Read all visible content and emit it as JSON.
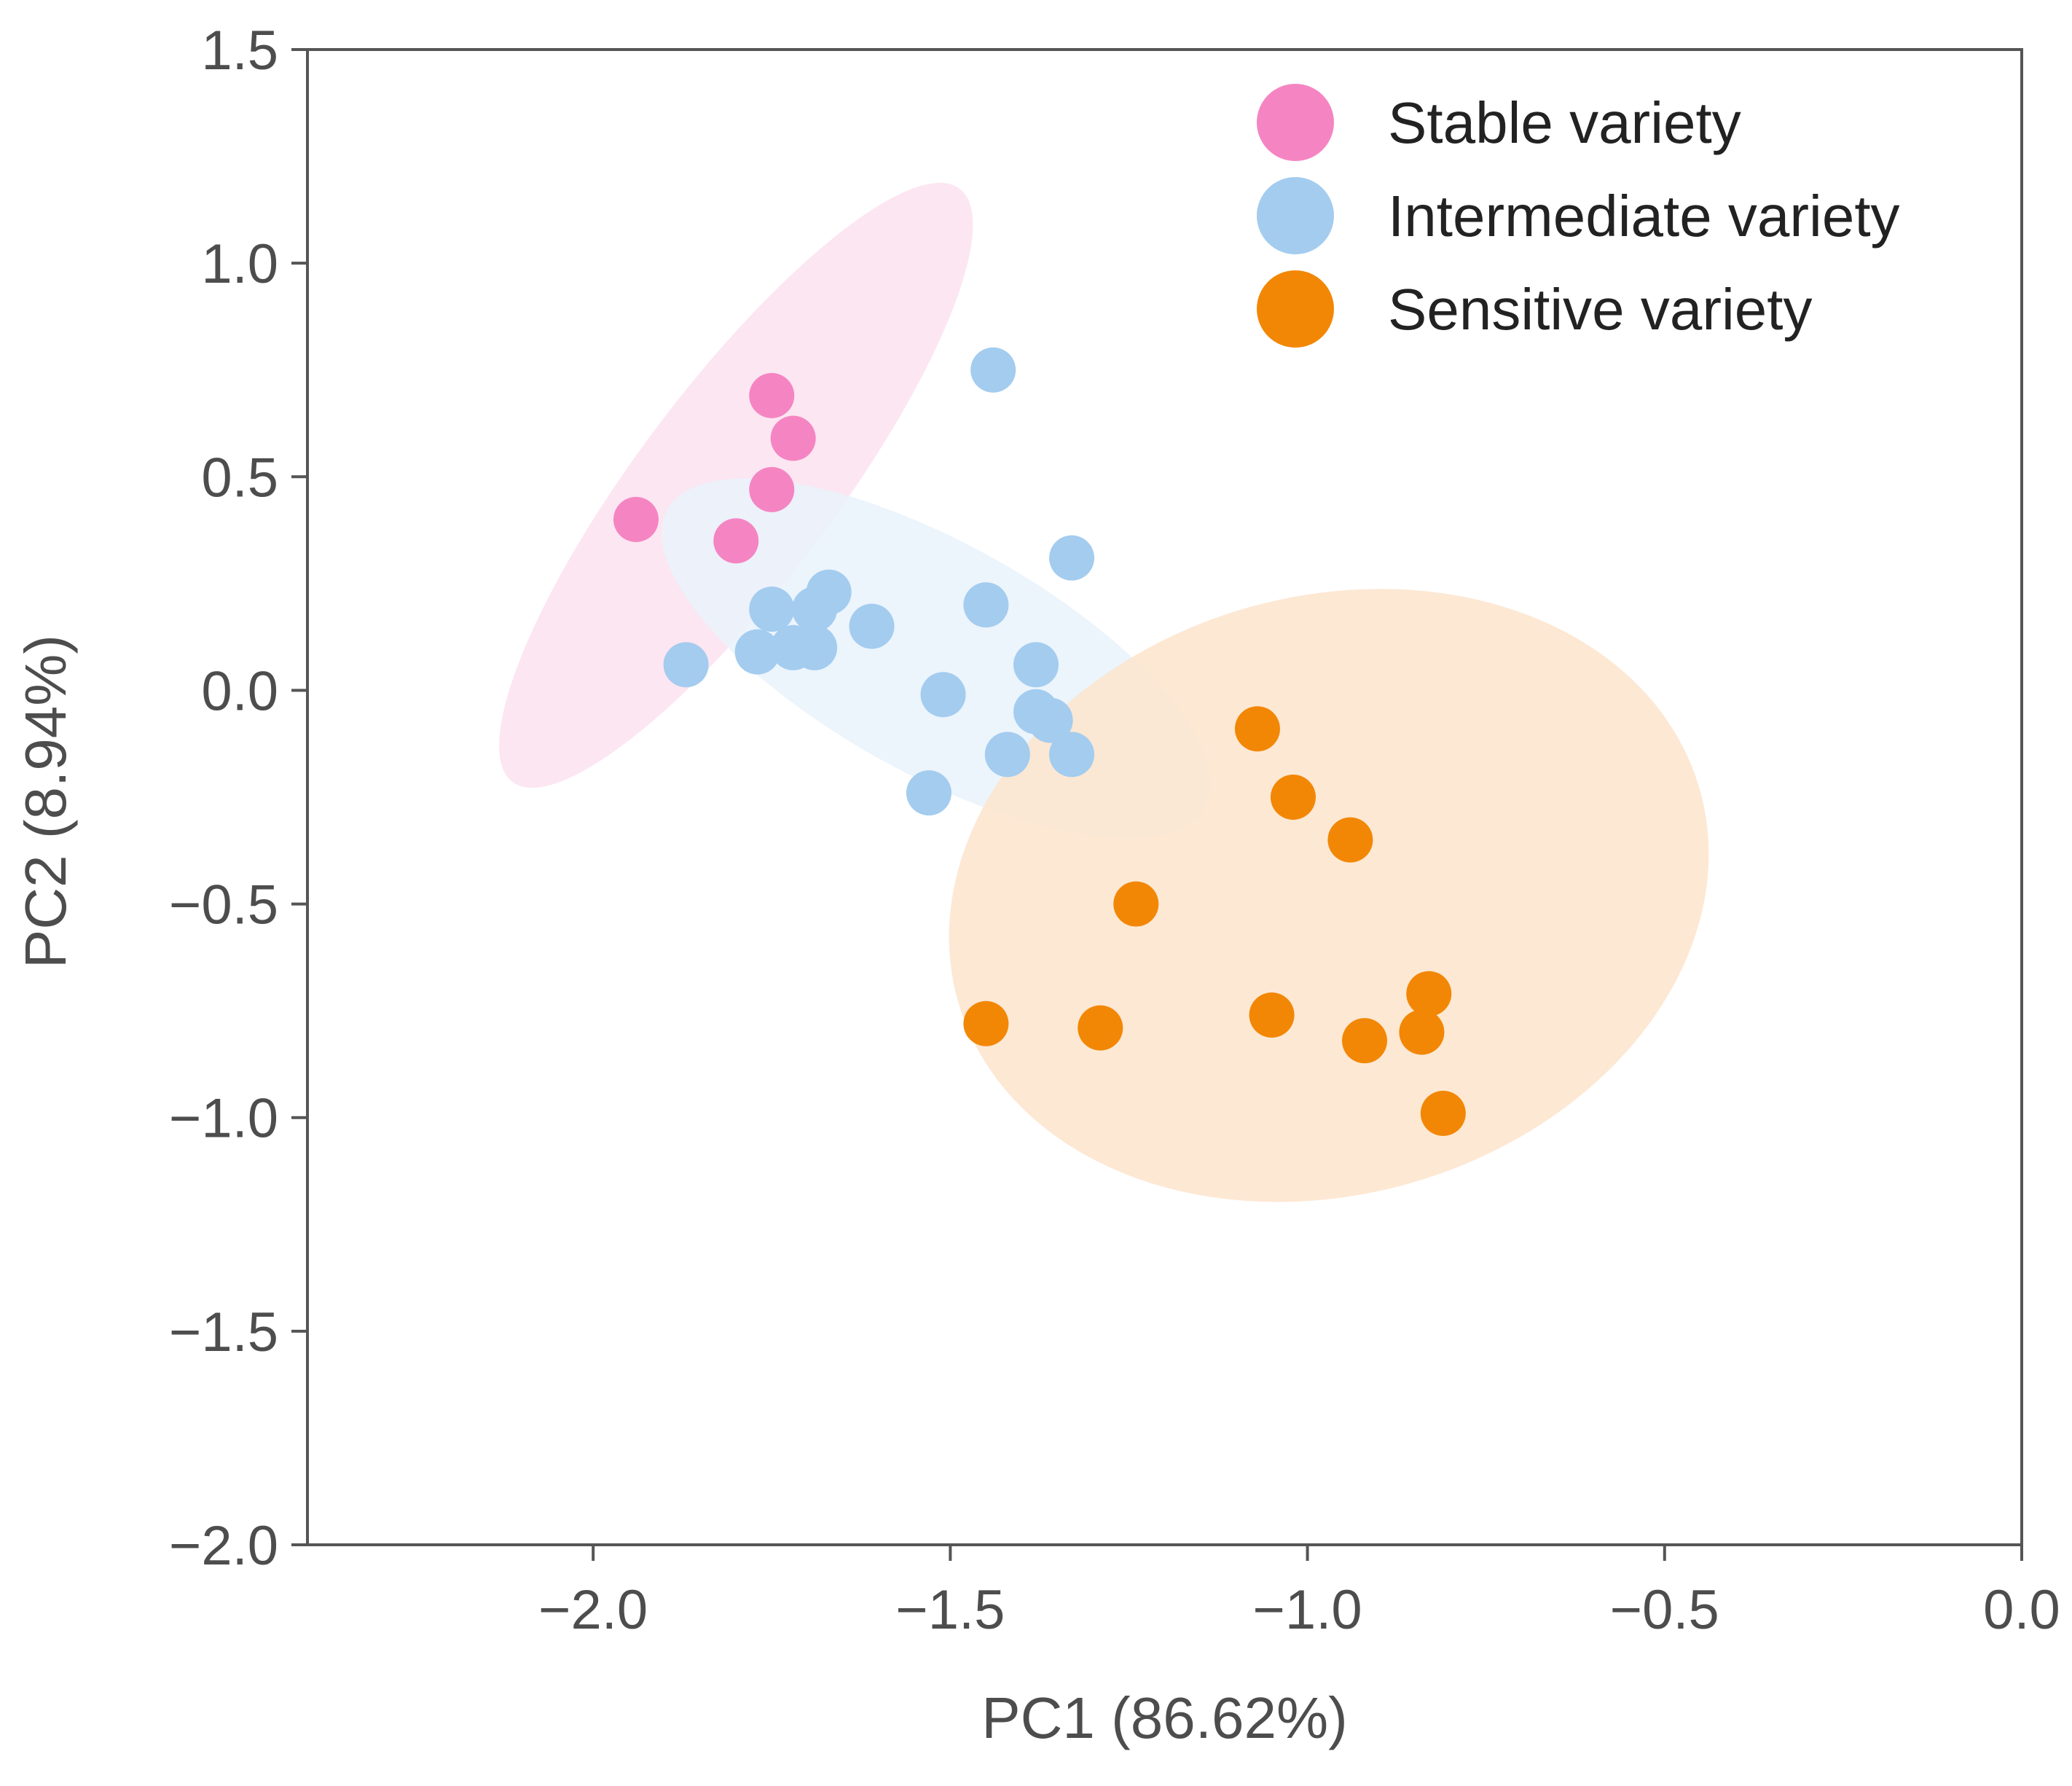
{
  "chart_data": {
    "type": "scatter",
    "xlabel": "PC1 (86.62%)",
    "ylabel": "PC2 (8.94%)",
    "xlim": [
      -2.4,
      0.0
    ],
    "ylim": [
      -2.0,
      1.5
    ],
    "xticks": [
      -2.0,
      -1.5,
      -1.0,
      -0.5,
      0.0
    ],
    "xtick_labels": [
      "−2.0",
      "−1.5",
      "−1.0",
      "−0.5",
      "0.0"
    ],
    "yticks": [
      1.5,
      1.0,
      0.5,
      0.0,
      -0.5,
      -1.0,
      -1.5,
      -2.0
    ],
    "ytick_labels": [
      "1.5",
      "1.0",
      "0.5",
      "0.0",
      "−0.5",
      "−1.0",
      "−1.5",
      "−2.0"
    ],
    "grid": false,
    "legend_position": "top-right",
    "series": [
      {
        "name": "Stable variety",
        "color": "#f585c2",
        "x": [
          -1.75,
          -1.72,
          -1.75,
          -1.94,
          -1.8
        ],
        "y": [
          0.69,
          0.59,
          0.47,
          0.4,
          0.35
        ],
        "ellipse": {
          "cx": -1.8,
          "cy": 0.48,
          "rx": 0.52,
          "ry": 0.23,
          "angle_deg": -53,
          "fill": "#fbe2f0"
        }
      },
      {
        "name": "Intermediate variety",
        "color": "#a3ccef",
        "x": [
          -1.44,
          -1.33,
          -1.45,
          -1.67,
          -1.69,
          -1.75,
          -1.61,
          -1.87,
          -1.77,
          -1.72,
          -1.69,
          -1.38,
          -1.51,
          -1.38,
          -1.36,
          -1.42,
          -1.33,
          -1.53
        ],
        "y": [
          0.75,
          0.31,
          0.2,
          0.23,
          0.19,
          0.19,
          0.15,
          0.06,
          0.09,
          0.1,
          0.1,
          0.06,
          -0.01,
          -0.05,
          -0.07,
          -0.15,
          -0.15,
          -0.24
        ],
        "ellipse": {
          "cx": -1.52,
          "cy": 0.075,
          "rx": 0.43,
          "ry": 0.27,
          "angle_deg": 29,
          "fill": "#e9f2fb"
        }
      },
      {
        "name": "Sensitive variety",
        "color": "#f28705",
        "x": [
          -1.07,
          -1.02,
          -0.94,
          -1.24,
          -0.83,
          -1.45,
          -1.29,
          -1.05,
          -0.92,
          -0.84,
          -0.81
        ],
        "y": [
          -0.09,
          -0.25,
          -0.35,
          -0.5,
          -0.71,
          -0.78,
          -0.79,
          -0.76,
          -0.82,
          -0.8,
          -0.99
        ],
        "ellipse": {
          "cx": -0.97,
          "cy": -0.48,
          "rx": 0.54,
          "ry": 0.7,
          "angle_deg": -16,
          "fill": "#fde4cc"
        }
      }
    ]
  }
}
